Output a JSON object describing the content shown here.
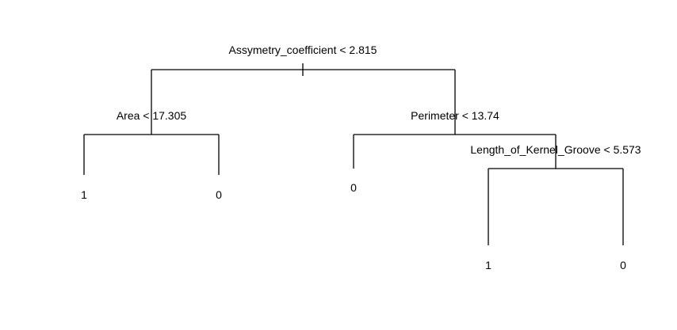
{
  "diagram": {
    "type": "decision-tree",
    "root": {
      "split": "Assymetry_coefficient < 2.815",
      "left": {
        "split": "Area < 17.305",
        "left": {
          "leaf": "1"
        },
        "right": {
          "leaf": "0"
        }
      },
      "right": {
        "split": "Perimeter < 13.74",
        "left": {
          "leaf": "0"
        },
        "right": {
          "split": "Length_of_Kernel_Groove < 5.573",
          "left": {
            "leaf": "1"
          },
          "right": {
            "leaf": "0"
          }
        }
      }
    }
  }
}
